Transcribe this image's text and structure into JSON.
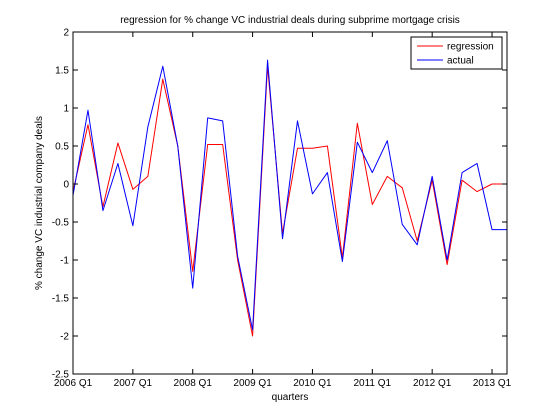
{
  "chart_data": {
    "type": "line",
    "title": "regression for % change VC industrial deals during subprime mortgage crisis",
    "xlabel": "quarters",
    "ylabel": "% change VC industrial company deals",
    "xlim": [
      0,
      29
    ],
    "ylim": [
      -2.5,
      2
    ],
    "grid": false,
    "legend_position": "top-right",
    "x_ticks": [
      {
        "x": 0,
        "label": "2006 Q1"
      },
      {
        "x": 4,
        "label": "2007 Q1"
      },
      {
        "x": 8,
        "label": "2008 Q1"
      },
      {
        "x": 12,
        "label": "2009 Q1"
      },
      {
        "x": 16,
        "label": "2010 Q1"
      },
      {
        "x": 20,
        "label": "2011 Q1"
      },
      {
        "x": 24,
        "label": "2012 Q1"
      },
      {
        "x": 28,
        "label": "2013 Q1"
      }
    ],
    "y_ticks": [
      {
        "y": 2,
        "label": "2"
      },
      {
        "y": 1.5,
        "label": "1.5"
      },
      {
        "y": 1,
        "label": "1"
      },
      {
        "y": 0.5,
        "label": "0.5"
      },
      {
        "y": 0,
        "label": "0"
      },
      {
        "y": -0.5,
        "label": "-0.5"
      },
      {
        "y": -1,
        "label": "-1"
      },
      {
        "y": -1.5,
        "label": "-1.5"
      },
      {
        "y": -2,
        "label": "-2"
      },
      {
        "y": -2.5,
        "label": "-2.5"
      }
    ],
    "x": [
      0,
      1,
      2,
      3,
      4,
      5,
      6,
      7,
      8,
      9,
      10,
      11,
      12,
      13,
      14,
      15,
      16,
      17,
      18,
      19,
      20,
      21,
      22,
      23,
      24,
      25,
      26,
      27,
      28,
      29
    ],
    "series": [
      {
        "name": "regression",
        "color": "#ff0000",
        "values": [
          -0.1,
          0.78,
          -0.3,
          0.54,
          -0.07,
          0.1,
          1.38,
          0.5,
          -1.15,
          0.52,
          0.52,
          -1.0,
          -2.0,
          1.55,
          -0.65,
          0.47,
          0.47,
          0.5,
          -0.97,
          0.8,
          -0.27,
          0.1,
          -0.05,
          -0.75,
          0.05,
          -1.06,
          0.05,
          -0.1,
          0.0,
          0.0
        ]
      },
      {
        "name": "actual",
        "color": "#0000ff",
        "values": [
          -0.15,
          0.97,
          -0.35,
          0.27,
          -0.55,
          0.75,
          1.55,
          0.5,
          -1.37,
          0.87,
          0.83,
          -0.95,
          -1.92,
          1.63,
          -0.72,
          0.83,
          -0.13,
          0.15,
          -1.02,
          0.55,
          0.15,
          0.57,
          -0.53,
          -0.8,
          0.1,
          -1.0,
          0.15,
          0.27,
          -0.6,
          -0.6
        ]
      }
    ]
  }
}
